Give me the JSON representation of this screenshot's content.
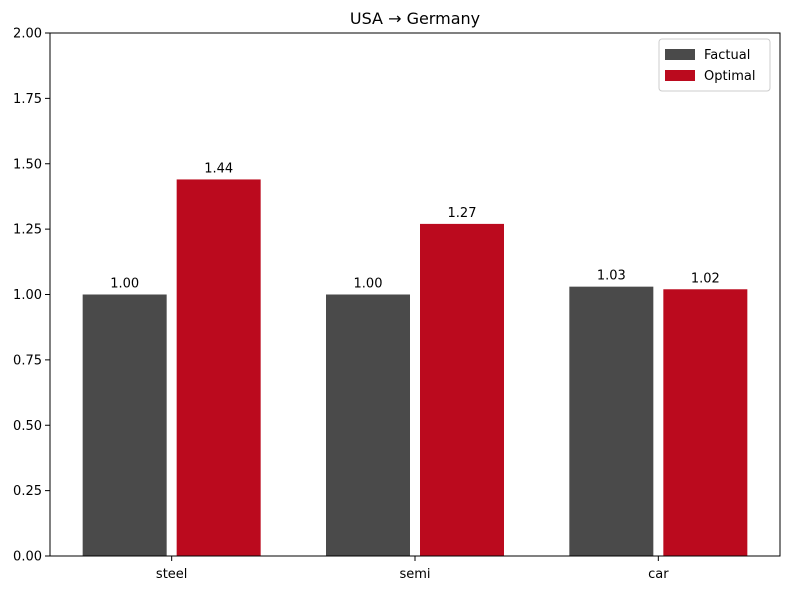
{
  "chart_data": {
    "type": "bar",
    "title": "USA → Germany",
    "xlabel": "",
    "ylabel": "",
    "categories": [
      "steel",
      "semi",
      "car"
    ],
    "series": [
      {
        "name": "Factual",
        "values": [
          1.0,
          1.0,
          1.03
        ],
        "labels": [
          "1.00",
          "1.00",
          "1.03"
        ],
        "color": "#4a4a4a"
      },
      {
        "name": "Optimal",
        "values": [
          1.44,
          1.27,
          1.02
        ],
        "labels": [
          "1.44",
          "1.27",
          "1.02"
        ],
        "color": "#bb0a1e"
      }
    ],
    "ylim": [
      0,
      2.0
    ],
    "yticks": [
      "0.00",
      "0.25",
      "0.50",
      "0.75",
      "1.00",
      "1.25",
      "1.50",
      "1.75",
      "2.00"
    ],
    "grid": false,
    "legend_position": "top-right"
  }
}
